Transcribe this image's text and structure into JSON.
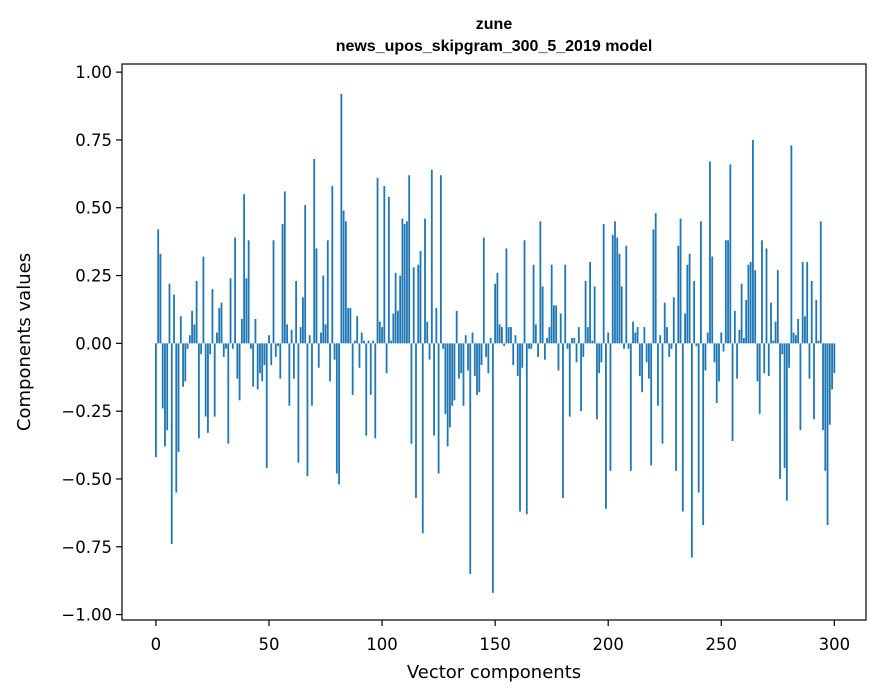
{
  "chart_data": {
    "type": "bar",
    "title": "zune",
    "subtitle": "news_upos_skipgram_300_5_2019 model",
    "xlabel": "Vector components",
    "ylabel": "Components values",
    "xlim": [
      -15,
      314
    ],
    "ylim": [
      -1.02,
      1.03
    ],
    "xticks": [
      0,
      50,
      100,
      150,
      200,
      250,
      300
    ],
    "xtick_labels": [
      "0",
      "50",
      "100",
      "150",
      "200",
      "250",
      "300"
    ],
    "yticks": [
      1.0,
      0.75,
      0.5,
      0.25,
      0.0,
      -0.25,
      -0.5,
      -0.75,
      -1.0
    ],
    "ytick_labels": [
      "1.00",
      "0.75",
      "0.50",
      "0.25",
      "0.00",
      "−0.25",
      "−0.50",
      "−0.75",
      "−1.00"
    ],
    "bar_color": "#1f77b4",
    "series": [
      {
        "name": "zune",
        "values": [
          -0.42,
          0.42,
          0.33,
          -0.24,
          -0.38,
          -0.32,
          0.22,
          -0.74,
          0.18,
          -0.55,
          -0.4,
          0.1,
          -0.16,
          -0.14,
          -0.02,
          0.03,
          0.12,
          0.07,
          0.23,
          -0.35,
          -0.04,
          0.32,
          -0.27,
          -0.33,
          -0.04,
          0.2,
          -0.27,
          0.04,
          0.13,
          0.15,
          -0.05,
          -0.02,
          -0.37,
          0.24,
          -0.02,
          0.39,
          -0.13,
          -0.21,
          0.09,
          0.55,
          0.24,
          0.38,
          -0.02,
          -0.16,
          0.09,
          -0.17,
          -0.11,
          -0.14,
          -0.08,
          -0.46,
          0.03,
          -0.08,
          0.38,
          -0.05,
          -0.01,
          -0.13,
          0.44,
          0.56,
          0.07,
          -0.23,
          0.05,
          -0.13,
          0.23,
          -0.44,
          0.06,
          0.17,
          0.51,
          -0.49,
          0.03,
          -0.23,
          0.68,
          0.35,
          -0.09,
          0.04,
          0.25,
          0.07,
          0.38,
          -0.14,
          0.58,
          -0.06,
          -0.48,
          -0.52,
          0.92,
          0.49,
          0.45,
          0.13,
          0.13,
          -0.19,
          0.01,
          0.1,
          -0.09,
          0.04,
          0.01,
          -0.34,
          0.01,
          -0.19,
          0.01,
          -0.35,
          0.61,
          0.08,
          0.06,
          0.58,
          -0.11,
          0.54,
          0.01,
          0.11,
          0.26,
          0.12,
          0.25,
          0.46,
          0.44,
          0.45,
          0.62,
          -0.37,
          0.28,
          -0.57,
          0.29,
          0.34,
          -0.7,
          0.46,
          0.08,
          -0.06,
          0.64,
          -0.34,
          0.13,
          -0.48,
          0.62,
          -0.02,
          -0.26,
          -0.38,
          -0.31,
          -0.23,
          -0.21,
          0.12,
          -0.13,
          -0.11,
          -0.23,
          0.03,
          -0.1,
          -0.85,
          0.04,
          -0.12,
          -0.19,
          -0.18,
          -0.08,
          0.39,
          -0.05,
          -0.11,
          0.02,
          -0.92,
          0.22,
          0.26,
          0.07,
          0.06,
          -0.01,
          0.35,
          0.06,
          0.06,
          -0.08,
          0.03,
          -0.12,
          -0.62,
          -0.09,
          0.38,
          -0.63,
          -0.02,
          -0.02,
          0.29,
          0.07,
          -0.05,
          0.45,
          0.21,
          -0.06,
          0.02,
          0.06,
          0.29,
          0.14,
          0.14,
          -0.1,
          0.11,
          -0.57,
          0.29,
          -0.02,
          -0.27,
          0.02,
          0.02,
          -0.07,
          0.06,
          -0.25,
          -0.05,
          0.23,
          0.06,
          0.3,
          0.01,
          0.21,
          -0.28,
          -0.11,
          -0.07,
          0.44,
          -0.61,
          0.04,
          -0.47,
          0.4,
          0.45,
          0.39,
          0.33,
          0.21,
          -0.02,
          0.36,
          -0.02,
          -0.47,
          0.08,
          0.04,
          0.06,
          -0.12,
          -0.18,
          0.06,
          -0.07,
          -0.13,
          -0.45,
          0.42,
          0.48,
          -0.23,
          0.03,
          -0.37,
          0.15,
          0.06,
          -0.05,
          -0.02,
          0.17,
          -0.47,
          0.36,
          0.46,
          -0.62,
          0.11,
          0.29,
          0.33,
          -0.79,
          0.23,
          -0.01,
          -0.55,
          0.45,
          -0.67,
          -0.1,
          0.04,
          0.67,
          0.32,
          -0.07,
          -0.22,
          -0.14,
          0.04,
          -0.03,
          0.38,
          0.38,
          0.66,
          -0.36,
          0.12,
          -0.13,
          0.05,
          0.22,
          0.02,
          0.16,
          0.29,
          0.3,
          0.75,
          0.27,
          -0.14,
          -0.26,
          0.38,
          -0.11,
          0.35,
          -0.12,
          0.15,
          0.01,
          0.08,
          0.27,
          -0.5,
          -0.04,
          -0.46,
          -0.58,
          -0.09,
          0.73,
          0.04,
          0.03,
          0.09,
          -0.32,
          0.3,
          0.1,
          0.3,
          -0.13,
          0.23,
          -0.28,
          0.16,
          0.01,
          0.45,
          -0.32,
          -0.47,
          -0.67,
          -0.3,
          -0.17,
          -0.11
        ]
      }
    ],
    "grid": false
  }
}
